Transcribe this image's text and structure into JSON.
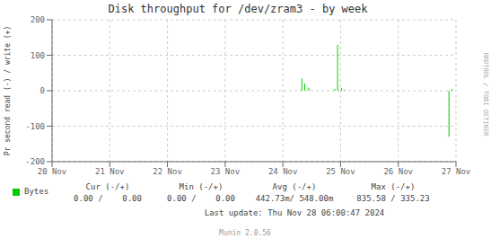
{
  "chart_data": {
    "type": "bar",
    "title": "Disk throughput for /dev/zram3 - by week",
    "ylabel": "Pr second read (-) / write (+)",
    "x": [
      0.47,
      4.33,
      4.38,
      4.45,
      4.9,
      4.95,
      5.02,
      5.08,
      6.88,
      6.93
    ],
    "series": [
      {
        "name": "Bytes",
        "color": "#00cc00",
        "values": [
          -2,
          35,
          20,
          8,
          5,
          130,
          8,
          2,
          -130,
          5
        ]
      }
    ],
    "xlim": [
      0,
      7
    ],
    "xticks": [
      {
        "value": 0,
        "label": "20 Nov"
      },
      {
        "value": 1,
        "label": "21 Nov"
      },
      {
        "value": 2,
        "label": "22 Nov"
      },
      {
        "value": 3,
        "label": "23 Nov"
      },
      {
        "value": 4,
        "label": "24 Nov"
      },
      {
        "value": 5,
        "label": "25 Nov"
      },
      {
        "value": 6,
        "label": "26 Nov"
      },
      {
        "value": 7,
        "label": "27 Nov"
      }
    ],
    "ylim": [
      -200,
      200
    ],
    "yticks": [
      -200,
      -100,
      0,
      100,
      200
    ],
    "grid": true,
    "legend": "bottom",
    "annotations": [
      "Cur (-/+)",
      "Min (-/+)",
      "Avg (-/+)",
      "Max (-/+)",
      "0.00 /    0.00",
      "0.00 /    0.00",
      "442.73m/ 548.00m",
      "835.58 / 335.23",
      "Last update: Thu Nov 28 06:00:47 2024",
      "Munin 2.0.56",
      "RRDTOOL / TOBI OETIKER"
    ]
  }
}
